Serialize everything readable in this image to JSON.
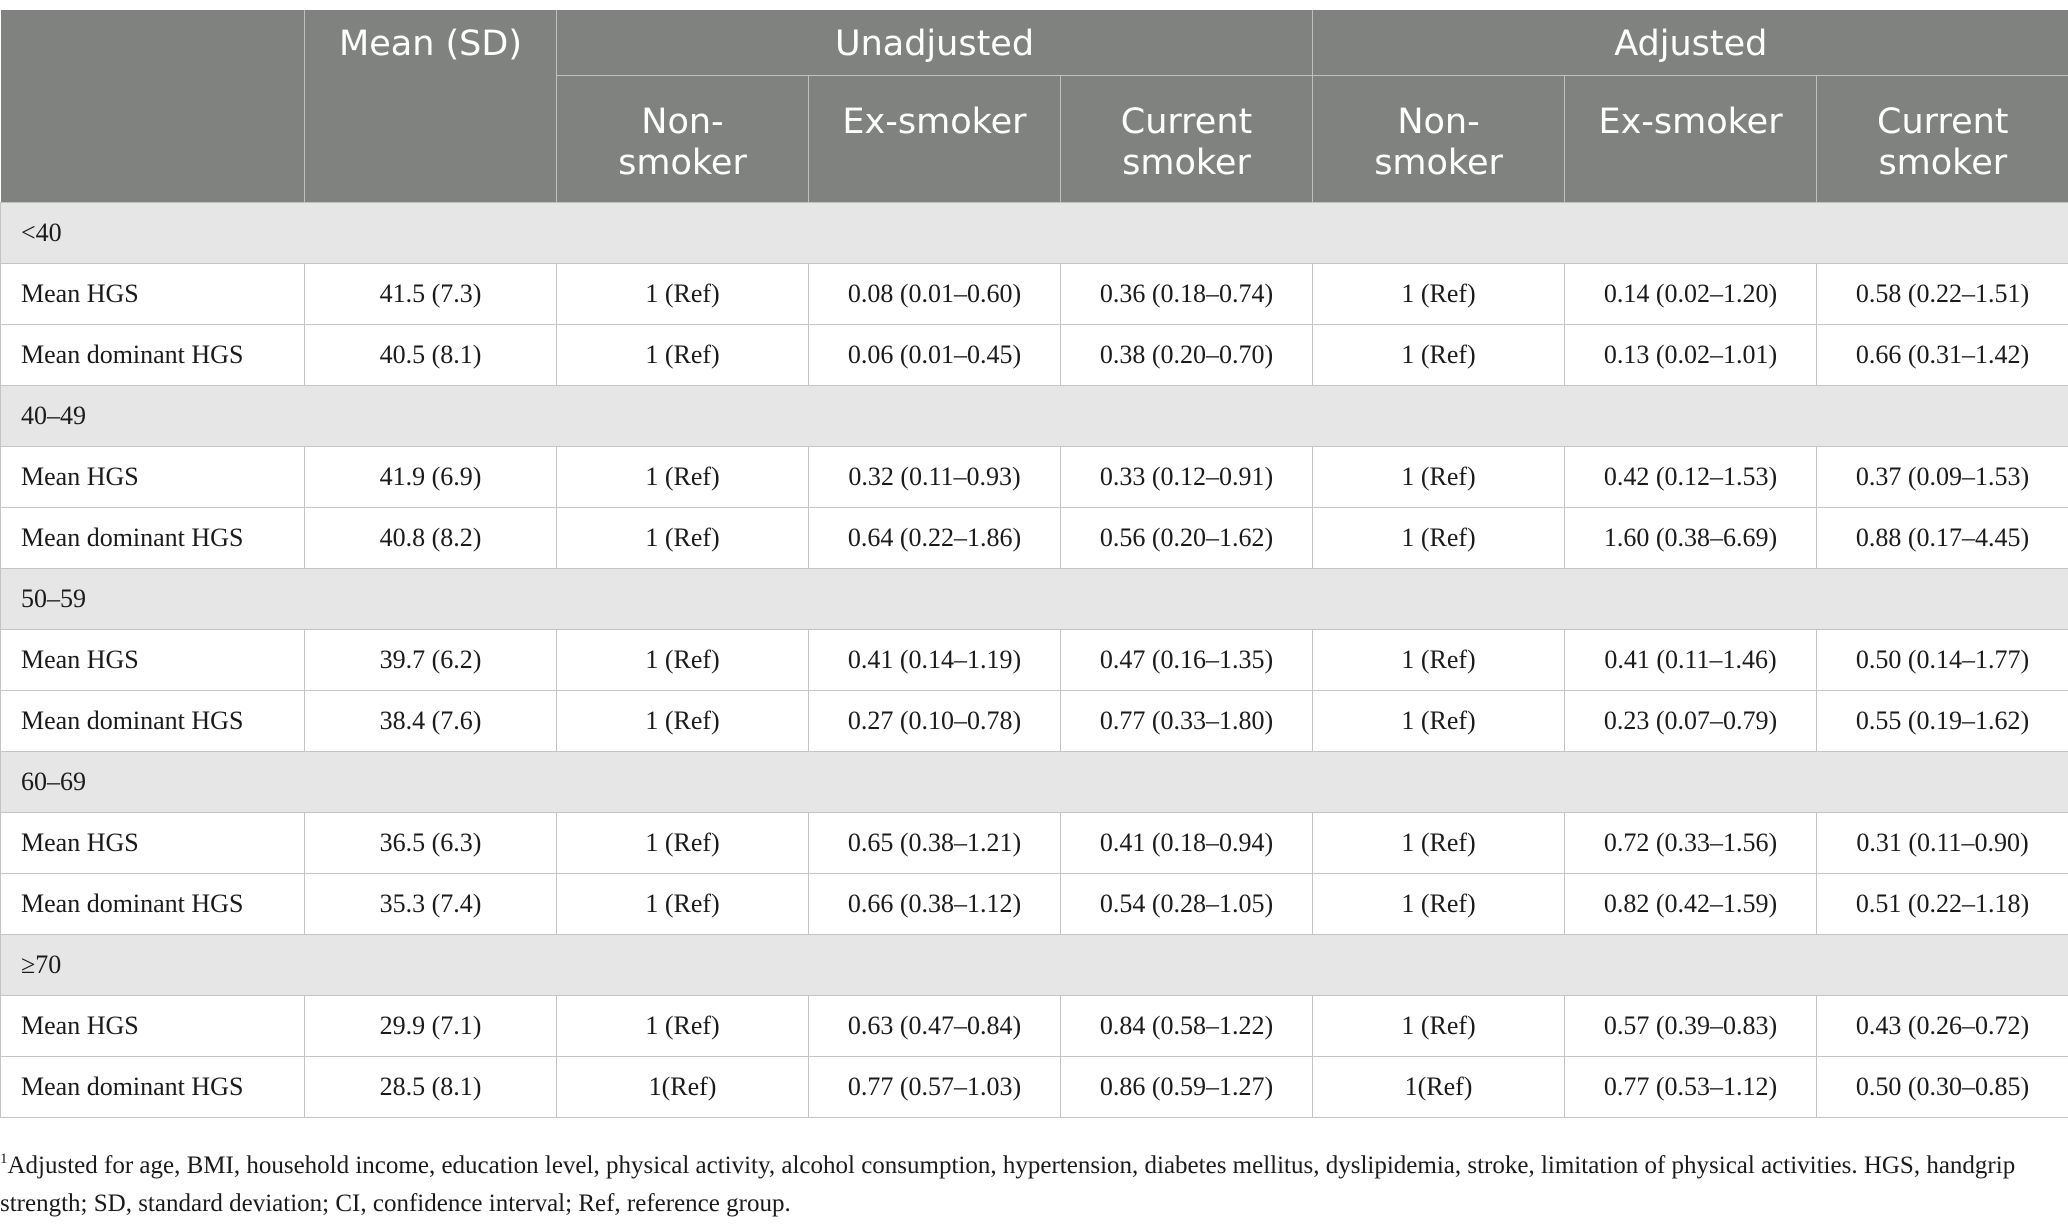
{
  "header": {
    "mean_sd": "Mean (SD)",
    "unadjusted": "Unadjusted",
    "adjusted": "Adjusted",
    "sub": [
      "Non-\nsmoker",
      "Ex-smoker",
      "Current\nsmoker",
      "Non-\nsmoker",
      "Ex-smoker",
      "Current\nsmoker"
    ]
  },
  "groups": [
    {
      "label": "<40",
      "rows": [
        {
          "label": "Mean HGS",
          "cells": [
            "41.5 (7.3)",
            "1 (Ref)",
            "0.08 (0.01–0.60)",
            "0.36 (0.18–0.74)",
            "1 (Ref)",
            "0.14 (0.02–1.20)",
            "0.58 (0.22–1.51)"
          ]
        },
        {
          "label": "Mean dominant HGS",
          "cells": [
            "40.5 (8.1)",
            "1 (Ref)",
            "0.06 (0.01–0.45)",
            "0.38 (0.20–0.70)",
            "1 (Ref)",
            "0.13 (0.02–1.01)",
            "0.66 (0.31–1.42)"
          ]
        }
      ]
    },
    {
      "label": "40–49",
      "rows": [
        {
          "label": "Mean HGS",
          "cells": [
            "41.9 (6.9)",
            "1 (Ref)",
            "0.32 (0.11–0.93)",
            "0.33 (0.12–0.91)",
            "1 (Ref)",
            "0.42 (0.12–1.53)",
            "0.37 (0.09–1.53)"
          ]
        },
        {
          "label": "Mean dominant HGS",
          "cells": [
            "40.8 (8.2)",
            "1 (Ref)",
            "0.64 (0.22–1.86)",
            "0.56 (0.20–1.62)",
            "1 (Ref)",
            "1.60 (0.38–6.69)",
            "0.88 (0.17–4.45)"
          ]
        }
      ]
    },
    {
      "label": "50–59",
      "rows": [
        {
          "label": "Mean HGS",
          "cells": [
            "39.7 (6.2)",
            "1 (Ref)",
            "0.41 (0.14–1.19)",
            "0.47 (0.16–1.35)",
            "1 (Ref)",
            "0.41 (0.11–1.46)",
            "0.50 (0.14–1.77)"
          ]
        },
        {
          "label": "Mean dominant HGS",
          "cells": [
            "38.4 (7.6)",
            "1 (Ref)",
            "0.27 (0.10–0.78)",
            "0.77 (0.33–1.80)",
            "1 (Ref)",
            "0.23 (0.07–0.79)",
            "0.55 (0.19–1.62)"
          ]
        }
      ]
    },
    {
      "label": "60–69",
      "rows": [
        {
          "label": "Mean HGS",
          "cells": [
            "36.5 (6.3)",
            "1 (Ref)",
            "0.65 (0.38–1.21)",
            "0.41 (0.18–0.94)",
            "1 (Ref)",
            "0.72 (0.33–1.56)",
            "0.31 (0.11–0.90)"
          ]
        },
        {
          "label": "Mean dominant HGS",
          "cells": [
            "35.3 (7.4)",
            "1 (Ref)",
            "0.66 (0.38–1.12)",
            "0.54 (0.28–1.05)",
            "1 (Ref)",
            "0.82 (0.42–1.59)",
            "0.51 (0.22–1.18)"
          ]
        }
      ]
    },
    {
      "label": "≥70",
      "rows": [
        {
          "label": "Mean HGS",
          "cells": [
            "29.9 (7.1)",
            "1 (Ref)",
            "0.63 (0.47–0.84)",
            "0.84 (0.58–1.22)",
            "1 (Ref)",
            "0.57 (0.39–0.83)",
            "0.43 (0.26–0.72)"
          ]
        },
        {
          "label": "Mean dominant HGS",
          "cells": [
            "28.5 (8.1)",
            "1(Ref)",
            "0.77 (0.57–1.03)",
            "0.86 (0.59–1.27)",
            "1(Ref)",
            "0.77 (0.53–1.12)",
            "0.50 (0.30–0.85)"
          ]
        }
      ]
    }
  ],
  "footnote": {
    "marker": "1",
    "text": "Adjusted for age, BMI, household income, education level, physical activity, alcohol consumption, hypertension, diabetes mellitus, dyslipidemia, stroke, limitation of physical activities. HGS, handgrip strength; SD, standard deviation; CI, confidence interval; Ref, reference group."
  },
  "colors": {
    "header_bg": "#7f827f",
    "header_text": "#ffffff",
    "section_bg": "#e6e6e6",
    "border": "#c4c4c4"
  }
}
